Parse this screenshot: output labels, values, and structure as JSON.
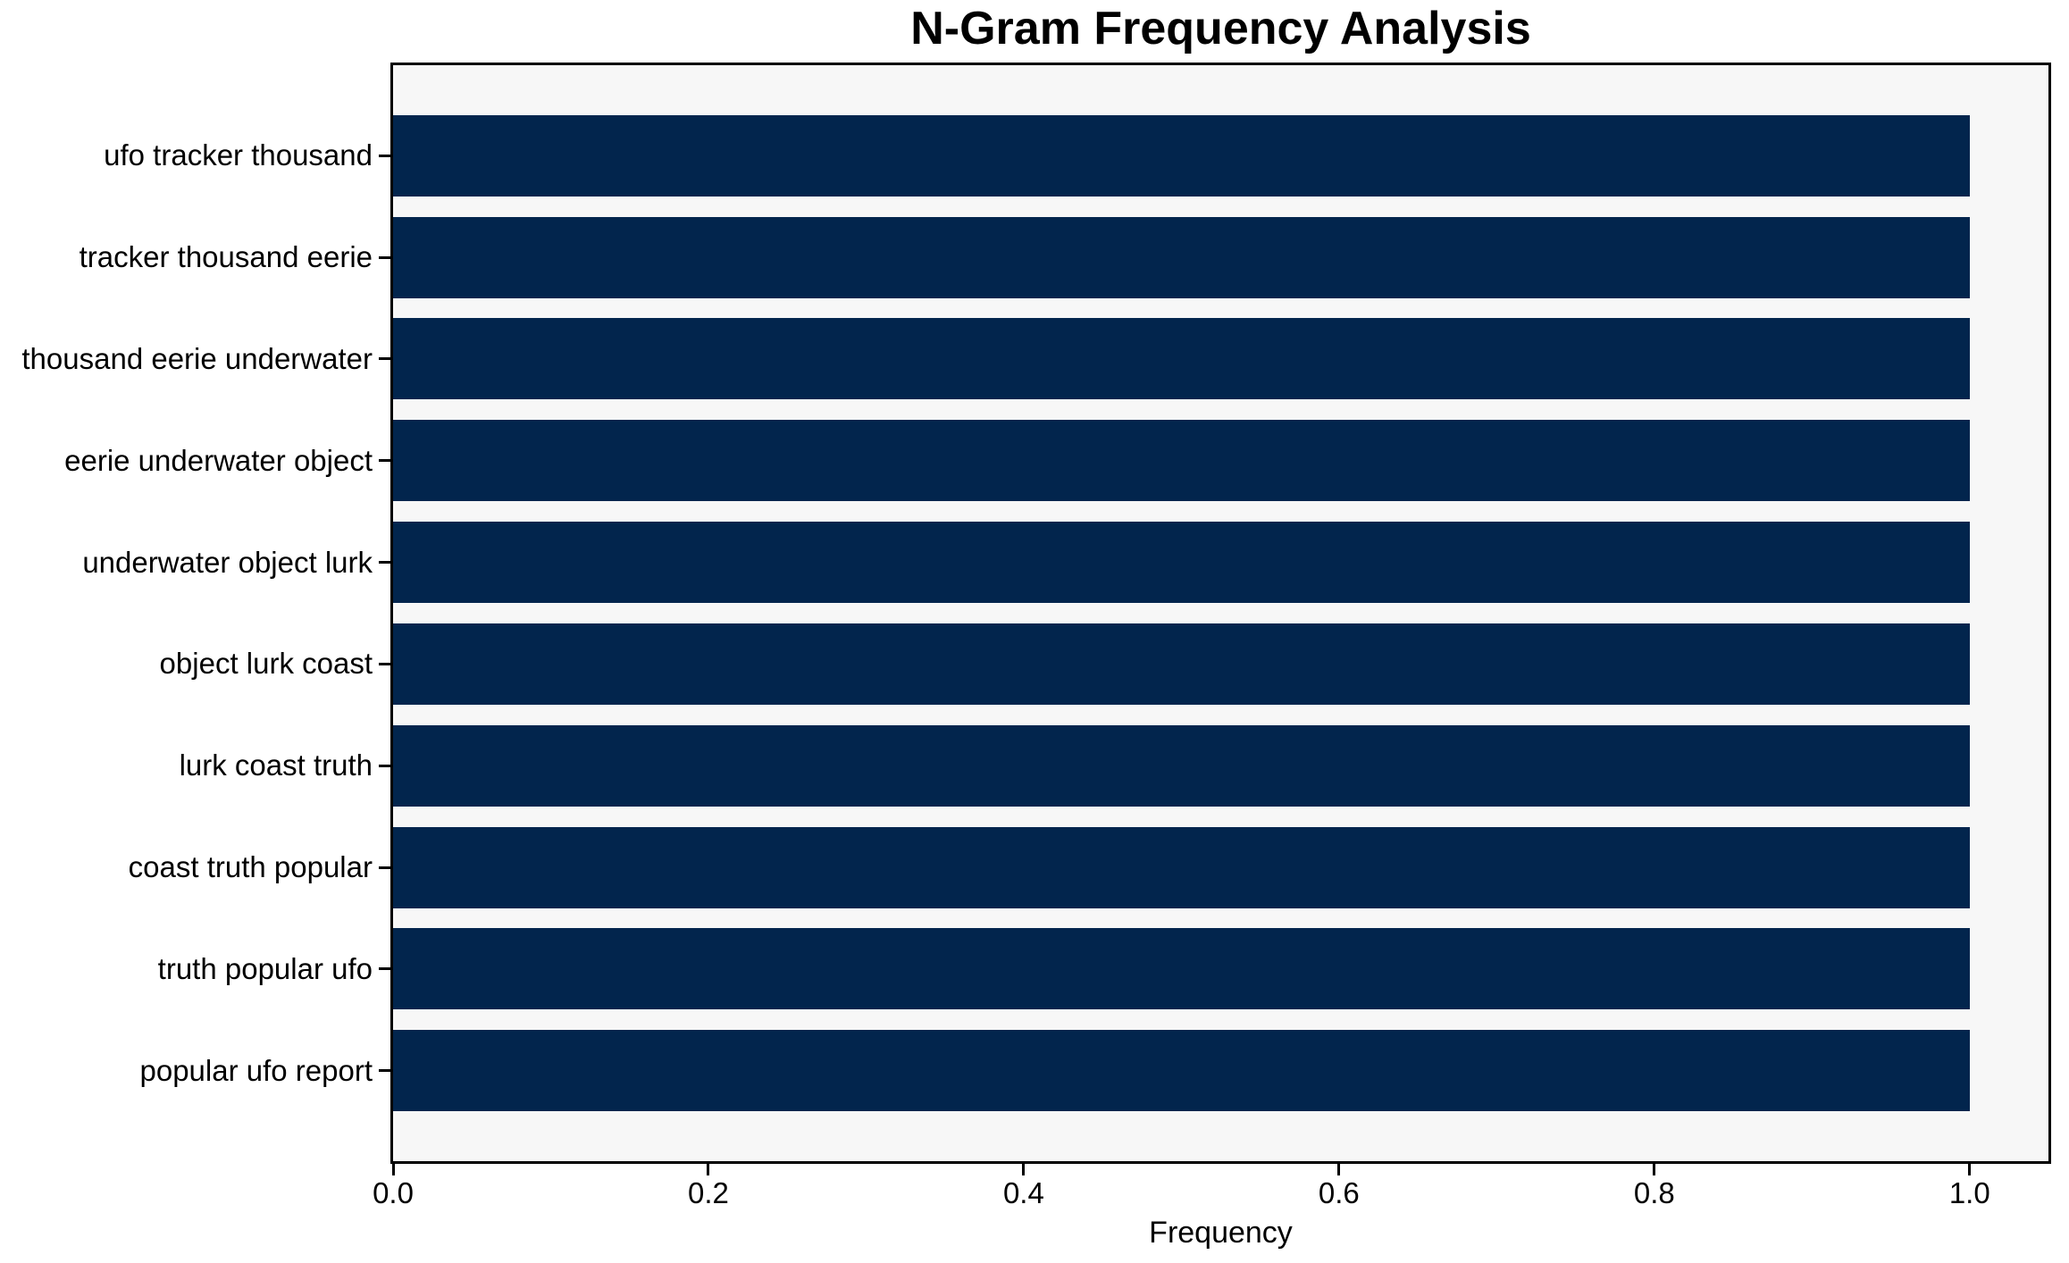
{
  "chart_data": {
    "type": "bar",
    "orientation": "horizontal",
    "title": "N-Gram Frequency Analysis",
    "xlabel": "Frequency",
    "ylabel": "",
    "categories": [
      "ufo tracker thousand",
      "tracker thousand eerie",
      "thousand eerie underwater",
      "eerie underwater object",
      "underwater object lurk",
      "object lurk coast",
      "lurk coast truth",
      "coast truth popular",
      "truth popular ufo",
      "popular ufo report"
    ],
    "values": [
      1.0,
      1.0,
      1.0,
      1.0,
      1.0,
      1.0,
      1.0,
      1.0,
      1.0,
      1.0
    ],
    "x_tick_labels": [
      "0.0",
      "0.2",
      "0.4",
      "0.6",
      "0.8",
      "1.0"
    ],
    "x_tick_values": [
      0.0,
      0.2,
      0.4,
      0.6,
      0.8,
      1.0
    ],
    "xlim": [
      0.0,
      1.05
    ],
    "grid": false,
    "legend": "none",
    "colors": {
      "bar": "#02254d",
      "plot_background": "#f7f7f7",
      "figure_background": "#ffffff",
      "axis": "#000000",
      "text": "#000000"
    }
  }
}
